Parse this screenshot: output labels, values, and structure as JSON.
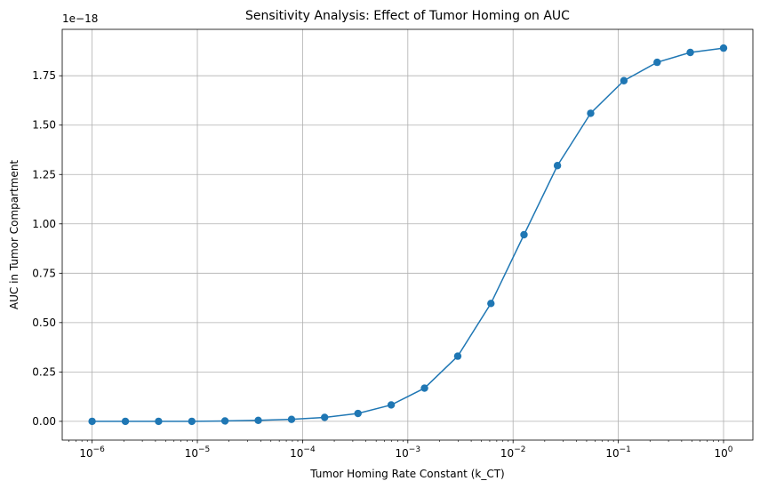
{
  "chart_data": {
    "type": "line",
    "title": "Sensitivity Analysis: Effect of Tumor Homing on AUC",
    "xlabel": "Tumor Homing Rate Constant (k_CT)",
    "ylabel": "AUC in Tumor Compartment",
    "x_scale": "log",
    "xlim": [
      5.2e-07,
      1.9
    ],
    "ylim": [
      -0.095,
      1.985
    ],
    "y_offset_text": "1e−18",
    "grid": true,
    "x_ticks": [
      {
        "base": "10",
        "exp": "−6"
      },
      {
        "base": "10",
        "exp": "−5"
      },
      {
        "base": "10",
        "exp": "−4"
      },
      {
        "base": "10",
        "exp": "−3"
      },
      {
        "base": "10",
        "exp": "−2"
      },
      {
        "base": "10",
        "exp": "−1"
      },
      {
        "base": "10",
        "exp": "0"
      }
    ],
    "y_ticks": [
      "0.00",
      "0.25",
      "0.50",
      "0.75",
      "1.00",
      "1.25",
      "1.50",
      "1.75"
    ],
    "series": [
      {
        "color": "#1f77b4",
        "marker": "circle",
        "x": [
          1e-06,
          2.07e-06,
          4.28e-06,
          8.86e-06,
          1.83e-05,
          3.79e-05,
          7.85e-05,
          0.000162,
          0.000336,
          0.000695,
          0.00144,
          0.00298,
          0.00616,
          0.0127,
          0.0264,
          0.0546,
          0.113,
          0.234,
          0.483,
          1.0
        ],
        "y": [
          0.0,
          0.0,
          0.0,
          0.0,
          0.002,
          0.005,
          0.01,
          0.02,
          0.04,
          0.083,
          0.168,
          0.33,
          0.597,
          0.945,
          1.295,
          1.56,
          1.725,
          1.818,
          1.868,
          1.89
        ]
      }
    ]
  }
}
